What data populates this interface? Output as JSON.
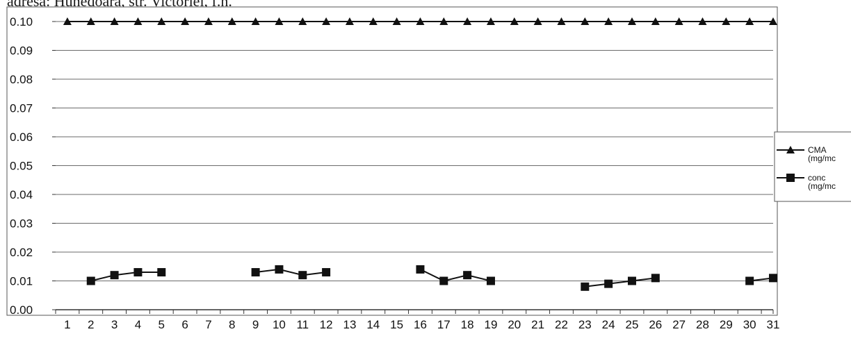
{
  "header": {
    "text": "adresa: Hunedoara, str. Victoriei, f.n."
  },
  "chart_data": {
    "type": "line",
    "title": "",
    "xlabel": "",
    "ylabel": "",
    "x": [
      "1",
      "2",
      "3",
      "4",
      "5",
      "6",
      "7",
      "8",
      "9",
      "10",
      "11",
      "12",
      "13",
      "14",
      "15",
      "16",
      "17",
      "18",
      "19",
      "20",
      "21",
      "22",
      "23",
      "24",
      "25",
      "26",
      "27",
      "28",
      "29",
      "30",
      "31"
    ],
    "y_ticks": [
      "0.00",
      "0.01",
      "0.02",
      "0.03",
      "0.04",
      "0.05",
      "0.06",
      "0.07",
      "0.08",
      "0.09",
      "0.10"
    ],
    "ylim": [
      0,
      0.1
    ],
    "grid": true,
    "legend_position": "right",
    "series": [
      {
        "name": "CMA (mg/mc)",
        "name_lines": [
          "CMA",
          "(mg/mc"
        ],
        "marker": "triangle",
        "color": "#111111",
        "values": [
          0.1,
          0.1,
          0.1,
          0.1,
          0.1,
          0.1,
          0.1,
          0.1,
          0.1,
          0.1,
          0.1,
          0.1,
          0.1,
          0.1,
          0.1,
          0.1,
          0.1,
          0.1,
          0.1,
          0.1,
          0.1,
          0.1,
          0.1,
          0.1,
          0.1,
          0.1,
          0.1,
          0.1,
          0.1,
          0.1,
          0.1
        ]
      },
      {
        "name": "conc (mg/mc)",
        "name_lines": [
          "conc",
          "(mg/mc"
        ],
        "marker": "square",
        "color": "#111111",
        "values": [
          null,
          0.01,
          0.012,
          0.013,
          0.013,
          null,
          null,
          null,
          0.013,
          0.014,
          0.012,
          0.013,
          null,
          null,
          null,
          0.014,
          0.01,
          0.012,
          0.01,
          null,
          null,
          null,
          0.008,
          0.009,
          0.01,
          0.011,
          null,
          null,
          null,
          0.01,
          0.011
        ]
      }
    ]
  }
}
